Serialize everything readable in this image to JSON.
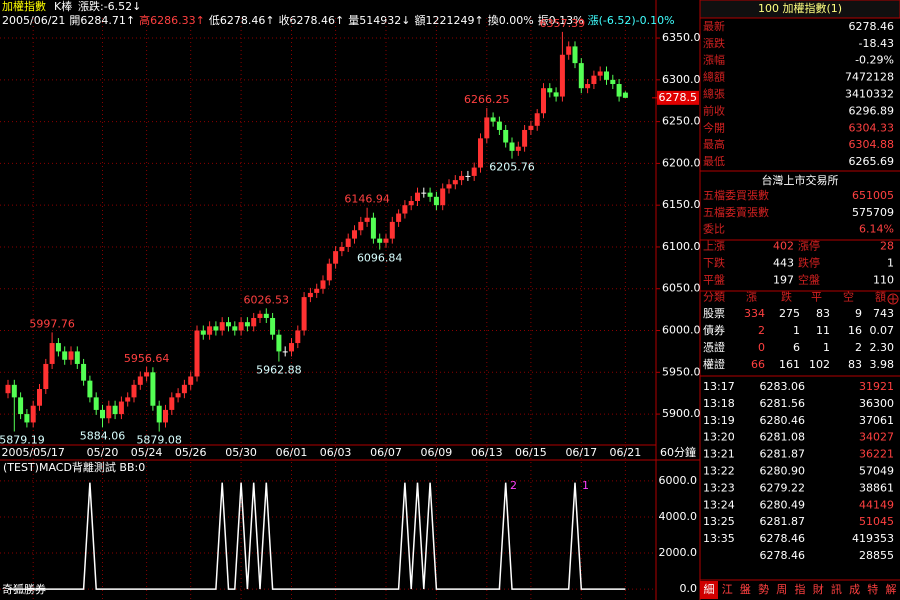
{
  "header": {
    "title": "加權指數",
    "kbar": "K棒",
    "change": "漲跌:-6.52↓",
    "quote_line": [
      {
        "text": "2005/06/21",
        "color": "#ffffff"
      },
      {
        "text": "開6284.71↑",
        "color": "#ffffff"
      },
      {
        "text": "高6286.33↑",
        "color": "#ff4040"
      },
      {
        "text": "低6278.46↑",
        "color": "#ffffff"
      },
      {
        "text": "收6278.46↑",
        "color": "#ffffff"
      },
      {
        "text": "量514932↓",
        "color": "#ffffff"
      },
      {
        "text": "額1221249↑",
        "color": "#ffffff"
      },
      {
        "text": "換0.00%",
        "color": "#ffffff"
      },
      {
        "text": "振0.13%",
        "color": "#ffffff"
      },
      {
        "text": "漲(-6.52)-0.10%",
        "color": "#40ffff"
      }
    ]
  },
  "chart_data": [
    {
      "type": "candlestick",
      "categories": [
        null,
        null,
        null,
        null,
        "2005/05/17",
        null,
        null,
        null,
        null,
        null,
        null,
        null,
        null,
        null,
        null,
        "05/20",
        null,
        null,
        null,
        null,
        null,
        null,
        "05/24",
        null,
        null,
        null,
        null,
        null,
        null,
        "05/26",
        null,
        null,
        null,
        null,
        null,
        null,
        null,
        "05/30",
        null,
        null,
        null,
        null,
        null,
        null,
        null,
        "06/01",
        null,
        null,
        null,
        null,
        null,
        null,
        "06/03",
        null,
        null,
        null,
        null,
        null,
        null,
        null,
        "06/07",
        null,
        null,
        null,
        null,
        null,
        null,
        null,
        "06/09",
        null,
        null,
        null,
        null,
        null,
        null,
        null,
        "06/13",
        null,
        null,
        null,
        null,
        null,
        null,
        "06/15",
        null,
        null,
        null,
        null,
        null,
        null,
        null,
        "06/17",
        null,
        null,
        null,
        null,
        null,
        null,
        "06/21"
      ],
      "open": [
        5925,
        5935,
        5920,
        5900,
        5890,
        5910,
        5930,
        5960,
        5985,
        5975,
        5965,
        5975,
        5960,
        5940,
        5920,
        5905,
        5895,
        5910,
        5900,
        5915,
        5920,
        5935,
        5945,
        5950,
        5910,
        5890,
        5905,
        5920,
        5925,
        5935,
        5945,
        6000,
        5995,
        6005,
        6000,
        6010,
        6005,
        6000,
        6010,
        6005,
        6015,
        6020,
        6015,
        5995,
        5975,
        5975,
        5985,
        6000,
        6040,
        6045,
        6050,
        6060,
        6080,
        6095,
        6100,
        6110,
        6120,
        6130,
        6135,
        6110,
        6105,
        6110,
        6130,
        6140,
        6150,
        6155,
        6165,
        6165,
        6160,
        6150,
        6170,
        6175,
        6180,
        6185,
        6185,
        6195,
        6230,
        6255,
        6250,
        6240,
        6225,
        6215,
        6220,
        6240,
        6245,
        6260,
        6290,
        6285,
        6280,
        6330,
        6340,
        6320,
        6290,
        6295,
        6305,
        6310,
        6300,
        6295,
        6284.71
      ],
      "high": [
        5941,
        5941,
        5926,
        5906,
        5916,
        5936,
        5966,
        5997.76,
        5991,
        5981,
        5981,
        5981,
        5966,
        5946,
        5926,
        5911,
        5916,
        5916,
        5921,
        5926,
        5941,
        5951,
        5956.64,
        5956,
        5916,
        5911,
        5926,
        5931,
        5941,
        5951,
        6006,
        6006,
        6011,
        6011,
        6016,
        6016,
        6011,
        6016,
        6016,
        6021,
        6024,
        6026.53,
        6021,
        6001,
        5981,
        5991,
        6006,
        6046,
        6051,
        6056,
        6066,
        6086,
        6101,
        6106,
        6116,
        6126,
        6136,
        6146.94,
        6141,
        6116,
        6116,
        6136,
        6145,
        6156,
        6161,
        6171,
        6171,
        6171,
        6166,
        6176,
        6181,
        6186,
        6191,
        6191,
        6201,
        6236,
        6266.25,
        6261,
        6256,
        6246,
        6231,
        6226,
        6246,
        6251,
        6265,
        6296,
        6296,
        6291,
        6357.39,
        6346,
        6346,
        6326,
        6301,
        6311,
        6316,
        6316,
        6306,
        6301,
        6286.33
      ],
      "low": [
        5919,
        5879.19,
        5894,
        5884,
        5884,
        5904,
        5924,
        5954,
        5969,
        5959,
        5959,
        5954,
        5934,
        5914,
        5899,
        5884.06,
        5889,
        5894,
        5894,
        5909,
        5914,
        5929,
        5939,
        5904,
        5879.08,
        5884,
        5899,
        5914,
        5919,
        5929,
        5939,
        5989,
        5989,
        5994,
        5994,
        5999,
        5994,
        5994,
        5999,
        5999,
        6009,
        6009,
        5989,
        5962.88,
        5969,
        5969,
        5979,
        5994,
        6034,
        6039,
        6044,
        6054,
        6074,
        6089,
        6094,
        6104,
        6114,
        6124,
        6104,
        6096.84,
        6099,
        6104,
        6124,
        6134,
        6144,
        6149,
        6159,
        6154,
        6144,
        6144,
        6164,
        6169,
        6174,
        6179,
        6179,
        6189,
        6224,
        6244,
        6234,
        6219,
        6205.76,
        6209,
        6214,
        6234,
        6239,
        6254,
        6279,
        6274,
        6274,
        6324,
        6314,
        6284,
        6284,
        6289,
        6299,
        6294,
        6289,
        6274,
        6278.46
      ],
      "close": [
        5935,
        5920,
        5900,
        5890,
        5910,
        5930,
        5960,
        5985,
        5975,
        5965,
        5975,
        5960,
        5940,
        5920,
        5905,
        5895,
        5910,
        5900,
        5915,
        5920,
        5935,
        5945,
        5950,
        5910,
        5890,
        5905,
        5920,
        5925,
        5935,
        5945,
        6000,
        5995,
        6005,
        6000,
        6010,
        6005,
        6000,
        6010,
        6005,
        6015,
        6020,
        6015,
        5995,
        5975,
        5975,
        5985,
        6000,
        6040,
        6045,
        6050,
        6060,
        6080,
        6095,
        6100,
        6110,
        6120,
        6130,
        6135,
        6110,
        6105,
        6110,
        6130,
        6140,
        6150,
        6155,
        6165,
        6165,
        6160,
        6150,
        6170,
        6175,
        6180,
        6185,
        6185,
        6195,
        6230,
        6255,
        6250,
        6240,
        6225,
        6215,
        6220,
        6240,
        6245,
        6260,
        6290,
        6285,
        6280,
        6330,
        6340,
        6320,
        6290,
        6295,
        6305,
        6310,
        6300,
        6295,
        6280,
        6278.46
      ],
      "up_color": "#ff3232",
      "down_color": "#54ff54",
      "flat_color": "#ffffff",
      "ylim": [
        5863,
        6374
      ],
      "yticks": [
        {
          "value": 6350,
          "label": "6350.0"
        },
        {
          "value": 6300,
          "label": "6300.0"
        },
        {
          "value": 6250,
          "label": "6250.0"
        },
        {
          "value": 6200,
          "label": "6200.0"
        },
        {
          "value": 6150,
          "label": "6150.0"
        },
        {
          "value": 6100,
          "label": "6100.0"
        },
        {
          "value": 6050,
          "label": "6050.0"
        },
        {
          "value": 6000,
          "label": "6000.0"
        },
        {
          "value": 5950,
          "label": "5950.0"
        },
        {
          "value": 5900,
          "label": "5900.0"
        }
      ],
      "grid": true,
      "last_price": {
        "value": 6278.46,
        "label": "6278.5"
      },
      "annotations": [
        "5997.76",
        "5879.19",
        "5884.06",
        "5956.64",
        "5879.08",
        "6026.53",
        "5962.88",
        "6146.94",
        "6096.84",
        "6266.25",
        "6205.76",
        "6357.39"
      ],
      "x_unit": "60分鐘"
    },
    {
      "type": "line",
      "title": "(TEST)MACD背離測試 BB:0",
      "color": "#ffffff",
      "values": [
        0,
        0,
        0,
        0,
        0,
        0,
        0,
        0,
        0,
        0,
        0,
        0,
        0,
        5900,
        0,
        0,
        0,
        0,
        0,
        0,
        0,
        0,
        0,
        0,
        0,
        0,
        0,
        0,
        0,
        0,
        0,
        0,
        0,
        0,
        5900,
        0,
        0,
        5900,
        0,
        5900,
        0,
        5900,
        0,
        0,
        0,
        0,
        0,
        0,
        0,
        0,
        0,
        0,
        0,
        0,
        0,
        0,
        0,
        0,
        0,
        0,
        0,
        0,
        0,
        5900,
        0,
        5900,
        0,
        5900,
        0,
        0,
        0,
        0,
        0,
        0,
        0,
        0,
        0,
        0,
        0,
        5900,
        0,
        0,
        0,
        0,
        0,
        0,
        0,
        0,
        0,
        0,
        5900,
        0,
        0,
        0,
        0,
        0,
        0,
        0,
        0
      ],
      "ylim": [
        -440,
        7050
      ],
      "yticks": [
        {
          "value": 6000,
          "label": "6000.0"
        },
        {
          "value": 4000,
          "label": "4000.0"
        },
        {
          "value": 2000,
          "label": "2000.0"
        },
        {
          "value": 0,
          "label": "0.0"
        }
      ],
      "grid": true,
      "markers": [
        "2",
        "1"
      ]
    }
  ],
  "footer_label": "奇狐勝券",
  "quote": {
    "title": "100 加權指數(1)",
    "rows": [
      {
        "label": "最新",
        "value": "6278.46",
        "color": "#ffffff"
      },
      {
        "label": "漲跌",
        "value": "-18.43",
        "color": "#ffffff"
      },
      {
        "label": "漲幅",
        "value": "-0.29%",
        "color": "#ffffff"
      },
      {
        "label": "總額",
        "value": "7472128",
        "color": "#ffffff"
      },
      {
        "label": "總張",
        "value": "3410332",
        "color": "#ffffff"
      },
      {
        "label": "前收",
        "value": "6296.89",
        "color": "#ffffff"
      },
      {
        "label": "今開",
        "value": "6304.33",
        "color": "#ff4040"
      },
      {
        "label": "最高",
        "value": "6304.88",
        "color": "#ff4040"
      },
      {
        "label": "最低",
        "value": "6265.69",
        "color": "#ffffff"
      }
    ]
  },
  "exchange": {
    "title": "台灣上市交易所",
    "rows": [
      {
        "label": "五檔委買張數",
        "value": "651005",
        "color": "#ff4040"
      },
      {
        "label": "五檔委賣張數",
        "value": "575709",
        "color": "#ffffff"
      },
      {
        "label": "委比",
        "value": "6.14%",
        "color": "#ff4040"
      }
    ],
    "breadth": [
      {
        "cells": [
          "上漲",
          "402",
          "漲停",
          "28"
        ],
        "color": "#ff4040"
      },
      {
        "cells": [
          "下跌",
          "443",
          "跌停",
          "1"
        ],
        "color": "#ffffff"
      },
      {
        "cells": [
          "平盤",
          "197",
          "空盤",
          "110"
        ],
        "color": "#ffffff"
      }
    ]
  },
  "category_table": {
    "header": [
      "分類",
      "漲",
      "跌",
      "平",
      "空",
      "額"
    ],
    "rows": [
      [
        "股票",
        "334",
        "275",
        "83",
        "9",
        "743"
      ],
      [
        "債券",
        "2",
        "1",
        "11",
        "16",
        "0.07"
      ],
      [
        "憑證",
        "0",
        "6",
        "1",
        "2",
        "2.30"
      ],
      [
        "權證",
        "66",
        "161",
        "102",
        "83",
        "3.98"
      ]
    ]
  },
  "ticks": [
    {
      "cells": [
        "13:17",
        "6283.06",
        "31921"
      ],
      "color": "#ff4040"
    },
    {
      "cells": [
        "13:18",
        "6281.56",
        "36300"
      ],
      "color": "#ffffff"
    },
    {
      "cells": [
        "13:19",
        "6280.46",
        "37061"
      ],
      "color": "#ffffff"
    },
    {
      "cells": [
        "13:20",
        "6281.08",
        "34027"
      ],
      "color": "#ff4040"
    },
    {
      "cells": [
        "13:21",
        "6281.87",
        "36221"
      ],
      "color": "#ff4040"
    },
    {
      "cells": [
        "13:22",
        "6280.90",
        "57049"
      ],
      "color": "#ffffff"
    },
    {
      "cells": [
        "13:23",
        "6279.22",
        "38861"
      ],
      "color": "#ffffff"
    },
    {
      "cells": [
        "13:24",
        "6280.49",
        "44149"
      ],
      "color": "#ff4040"
    },
    {
      "cells": [
        "13:25",
        "6281.87",
        "51045"
      ],
      "color": "#ff4040"
    },
    {
      "cells": [
        "13:35",
        "6278.46",
        "419353"
      ],
      "color": "#ffffff"
    },
    {
      "cells": [
        null,
        "6278.46",
        "28855"
      ],
      "color": "#ffffff"
    }
  ],
  "tabs": [
    "細",
    "江",
    "盤",
    "勢",
    "周",
    "指",
    "財",
    "訊",
    "成",
    "特",
    "解"
  ]
}
